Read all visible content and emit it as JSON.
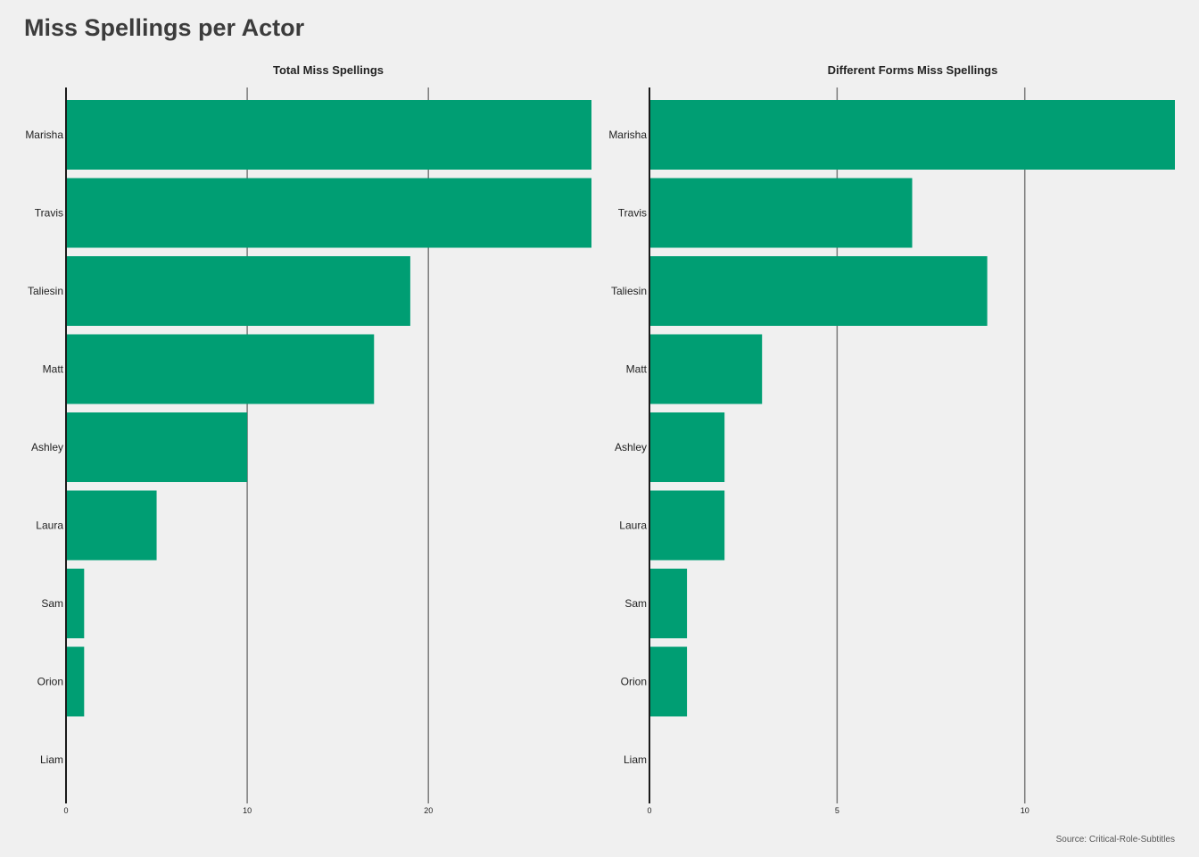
{
  "title": "Miss Spellings per Actor",
  "source": "Source: Critical-Role-Subtitles",
  "colors": {
    "bar": "#009e73",
    "background": "#f0f0f0",
    "grid": "#7a7a7a",
    "axis": "#1a1a1a"
  },
  "chart_data": [
    {
      "type": "bar",
      "orientation": "horizontal",
      "title": "Total Miss Spellings",
      "categories": [
        "Marisha",
        "Travis",
        "Taliesin",
        "Matt",
        "Ashley",
        "Laura",
        "Sam",
        "Orion",
        "Liam"
      ],
      "values": [
        29,
        29,
        19,
        17,
        10,
        5,
        1,
        1,
        0
      ],
      "xticks": [
        0,
        10,
        20
      ],
      "xlim": [
        0,
        29
      ],
      "xlabel": "",
      "ylabel": "",
      "grid": "vertical"
    },
    {
      "type": "bar",
      "orientation": "horizontal",
      "title": "Different Forms Miss Spellings",
      "categories": [
        "Marisha",
        "Travis",
        "Taliesin",
        "Matt",
        "Ashley",
        "Laura",
        "Sam",
        "Orion",
        "Liam"
      ],
      "values": [
        14,
        7,
        9,
        3,
        2,
        2,
        1,
        1,
        0
      ],
      "xticks": [
        0,
        5,
        10
      ],
      "xlim": [
        0,
        14
      ],
      "xlabel": "",
      "ylabel": "",
      "grid": "vertical"
    }
  ]
}
